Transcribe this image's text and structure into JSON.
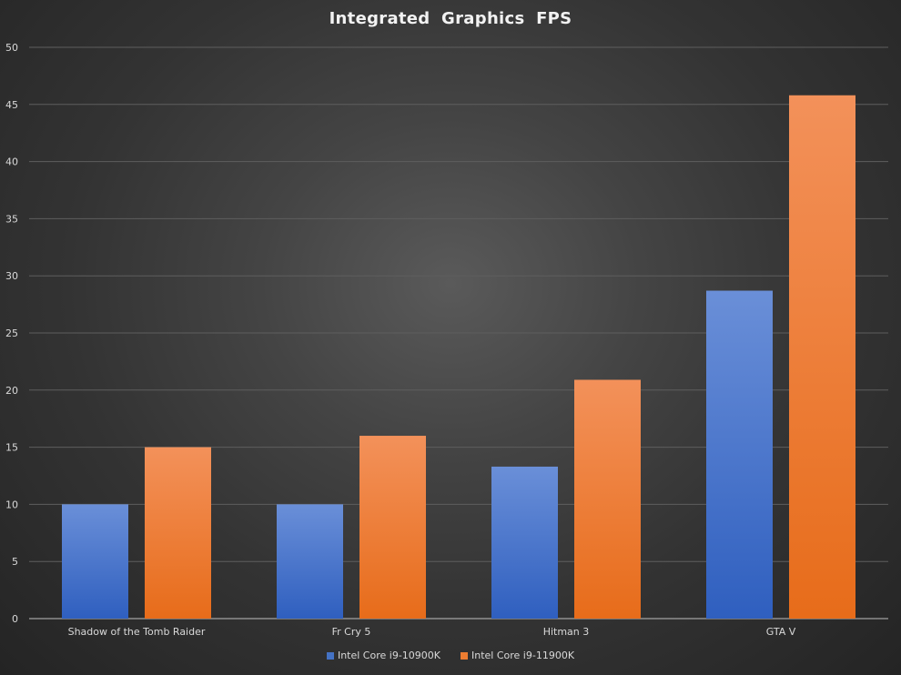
{
  "chart_data": {
    "type": "bar",
    "title": "Integrated Graphics FPS",
    "categories": [
      "Shadow of the Tomb Raider",
      "Fr Cry 5",
      "Hitman 3",
      "GTA V"
    ],
    "series": [
      {
        "name": "Intel Core i9-10900K",
        "values": [
          10,
          10,
          13.3,
          28.7
        ],
        "color": "#4472c4"
      },
      {
        "name": "Intel Core i9-11900K",
        "values": [
          15,
          16,
          20.9,
          45.8
        ],
        "color": "#ed7d31"
      }
    ],
    "ylim": [
      0,
      50
    ],
    "yticks": [
      0,
      5,
      10,
      15,
      20,
      25,
      30,
      35,
      40,
      45,
      50
    ],
    "grid": true,
    "legend_position": "bottom",
    "xlabel": "",
    "ylabel": ""
  }
}
